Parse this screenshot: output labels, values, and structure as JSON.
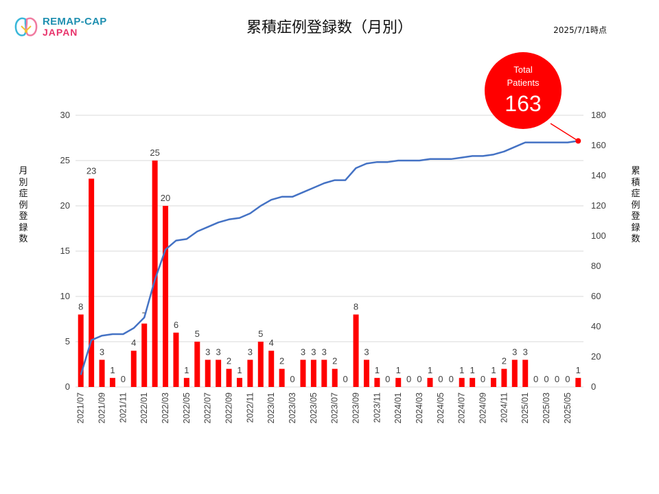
{
  "logo": {
    "line1": "REMAP-CAP",
    "line2": "JAPAN"
  },
  "title": "累積症例登録数（月別）",
  "date": "2025/7/1時点",
  "badge": {
    "line1": "Total",
    "line2": "Patients",
    "value": "163"
  },
  "colors": {
    "bar": "#ff0000",
    "line": "#4472c4",
    "badge": "#ff0000",
    "grid": "#d9d9d9"
  },
  "chart_data": {
    "type": "bar",
    "title": "累積症例登録数（月別）",
    "ylabel_left": "月別症例登録数",
    "ylabel_right": "累積症例登録数",
    "ylim_left": [
      0,
      30
    ],
    "ylim_right": [
      0,
      180
    ],
    "yticks_left": [
      "0",
      "5",
      "10",
      "15",
      "20",
      "25",
      "30"
    ],
    "yticks_right": [
      "0",
      "20",
      "40",
      "60",
      "80",
      "100",
      "120",
      "140",
      "160",
      "180"
    ],
    "grid": true,
    "categories": [
      "2021/07",
      "2021/08",
      "2021/09",
      "2021/10",
      "2021/11",
      "2021/12",
      "2022/01",
      "2022/02",
      "2022/03",
      "2022/04",
      "2022/05",
      "2022/06",
      "2022/07",
      "2022/08",
      "2022/09",
      "2022/10",
      "2022/11",
      "2022/12",
      "2023/01",
      "2023/02",
      "2023/03",
      "2023/04",
      "2023/05",
      "2023/06",
      "2023/07",
      "2023/08",
      "2023/09",
      "2023/10",
      "2023/11",
      "2023/12",
      "2024/01",
      "2024/02",
      "2024/03",
      "2024/04",
      "2024/05",
      "2024/06",
      "2024/07",
      "2024/08",
      "2024/09",
      "2024/10",
      "2024/11",
      "2024/12",
      "2025/01",
      "2025/02",
      "2025/03",
      "2025/04",
      "2025/05",
      "2025/06"
    ],
    "tick_labels": [
      "2021/07",
      "2021/09",
      "2021/11",
      "2022/01",
      "2022/03",
      "2022/05",
      "2022/07",
      "2022/09",
      "2022/11",
      "2023/01",
      "2023/03",
      "2023/05",
      "2023/07",
      "2023/09",
      "2023/11",
      "2024/01",
      "2024/03",
      "2024/05",
      "2024/07",
      "2024/09",
      "2024/11",
      "2025/01",
      "2025/03",
      "2025/05"
    ],
    "series": [
      {
        "type": "bar",
        "axis": "left",
        "values": [
          8,
          23,
          3,
          1,
          0,
          4,
          7,
          25,
          20,
          6,
          1,
          5,
          3,
          3,
          2,
          1,
          3,
          5,
          4,
          2,
          0,
          3,
          3,
          3,
          2,
          0,
          8,
          3,
          1,
          0,
          1,
          0,
          0,
          1,
          0,
          0,
          1,
          1,
          0,
          1,
          2,
          3,
          3,
          0,
          0,
          0,
          0,
          1
        ]
      },
      {
        "type": "line",
        "axis": "right",
        "values": [
          8,
          31,
          34,
          35,
          35,
          39,
          46,
          71,
          91,
          97,
          98,
          103,
          106,
          109,
          111,
          112,
          115,
          120,
          124,
          126,
          126,
          129,
          132,
          135,
          137,
          137,
          145,
          148,
          149,
          149,
          150,
          150,
          150,
          151,
          151,
          151,
          152,
          153,
          153,
          154,
          156,
          159,
          162,
          162,
          162,
          162,
          162,
          163
        ]
      }
    ]
  }
}
